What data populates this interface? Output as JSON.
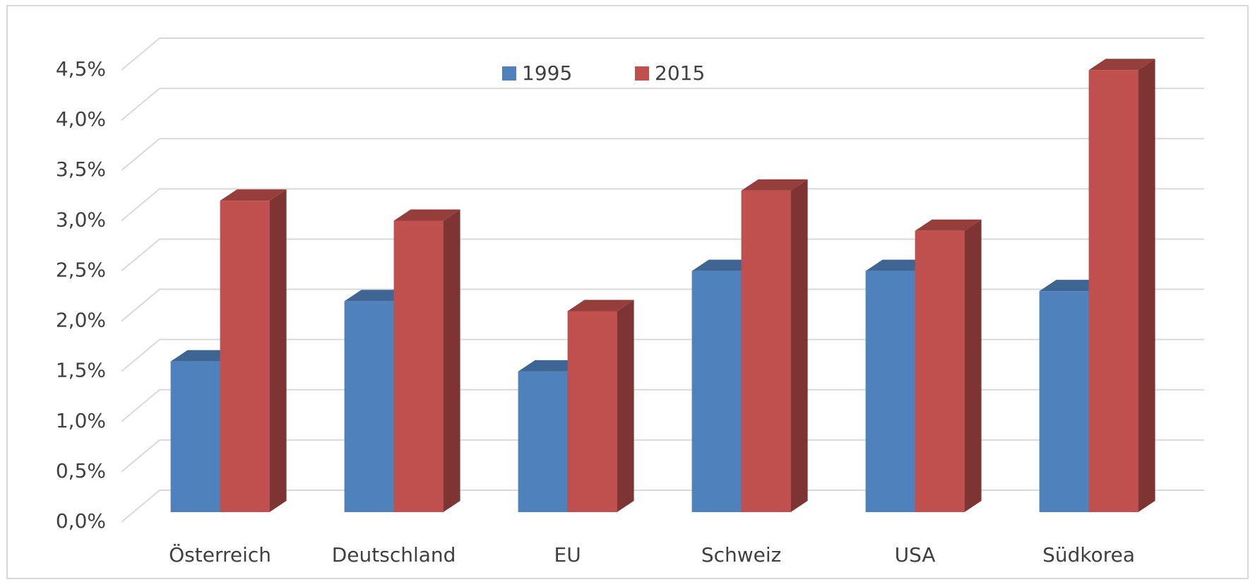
{
  "chart_data": {
    "type": "bar3d",
    "categories": [
      "Österreich",
      "Deutschland",
      "EU",
      "Schweiz",
      "USA",
      "Südkorea"
    ],
    "series": [
      {
        "name": "1995",
        "color": "#4f81bd",
        "values": [
          1.5,
          2.1,
          1.4,
          2.4,
          2.4,
          2.2
        ]
      },
      {
        "name": "2015",
        "color": "#c0504d",
        "values": [
          3.1,
          2.9,
          2.0,
          3.2,
          2.8,
          4.4
        ]
      }
    ],
    "ylim": [
      0,
      4.5
    ],
    "yticks": [
      {
        "value": 0,
        "label": "0,0%"
      },
      {
        "value": 0.5,
        "label": "0,5%"
      },
      {
        "value": 1,
        "label": "1,0%"
      },
      {
        "value": 1.5,
        "label": "1,5%"
      },
      {
        "value": 2,
        "label": "2,0%"
      },
      {
        "value": 2.5,
        "label": "2,5%"
      },
      {
        "value": 3,
        "label": "3,0%"
      },
      {
        "value": 3.5,
        "label": "3,5%"
      },
      {
        "value": 4,
        "label": "4,0%"
      },
      {
        "value": 4.5,
        "label": "4,5%"
      }
    ],
    "grid": true,
    "legend": "top"
  }
}
